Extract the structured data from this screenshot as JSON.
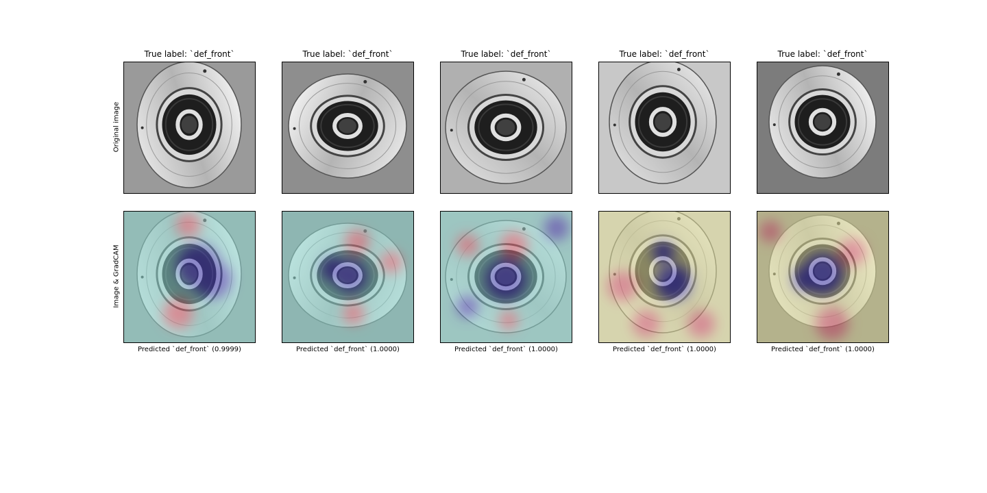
{
  "figure": {
    "row_labels": [
      "Original image",
      "Image & GradCAM"
    ],
    "columns": [
      {
        "title": "True label: `def_front`",
        "prediction": "Predicted `def_front` (0.9999)"
      },
      {
        "title": "True label: `def_front`",
        "prediction": "Predicted `def_front` (1.0000)"
      },
      {
        "title": "True label: `def_front`",
        "prediction": "Predicted `def_front` (1.0000)"
      },
      {
        "title": "True label: `def_front`",
        "prediction": "Predicted `def_front` (1.0000)"
      },
      {
        "title": "True label: `def_front`",
        "prediction": "Predicted `def_front` (1.0000)"
      }
    ]
  },
  "colors": {
    "heatmap_base_cool": "#8fd8d0",
    "heatmap_base_warm": "#e2df9a",
    "heatmap_hot": "#e0606e",
    "heatmap_cold": "#4a3fb8"
  }
}
